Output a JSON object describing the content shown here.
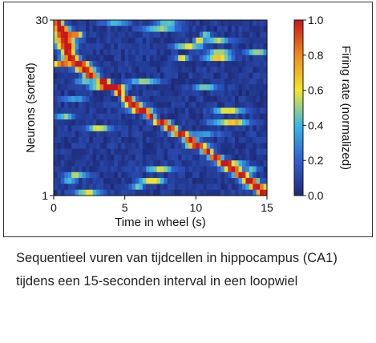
{
  "chart_data": {
    "type": "heatmap",
    "xlabel": "Time in wheel (s)",
    "ylabel": "Neurons (sorted)",
    "x_ticks": [
      "0",
      "5",
      "10",
      "15"
    ],
    "y_ticks": [
      "1",
      "30"
    ],
    "xlim": [
      0,
      15
    ],
    "ylim": [
      1,
      30
    ],
    "colorbar": {
      "label": "Firing rate (normalized)",
      "ticks": [
        "0.0",
        "0.2",
        "0.4",
        "0.6",
        "0.8",
        "1.0"
      ],
      "range": [
        0,
        1
      ],
      "colormap": [
        "#1e2a78",
        "#2f5fd0",
        "#38b8e6",
        "#f3e62a",
        "#f08a1c",
        "#c8161d"
      ]
    },
    "neurons": [
      {
        "neuron": 30,
        "peak_time_s": 0.3
      },
      {
        "neuron": 29,
        "peak_time_s": 0.5
      },
      {
        "neuron": 28,
        "peak_time_s": 0.7
      },
      {
        "neuron": 27,
        "peak_time_s": 0.8
      },
      {
        "neuron": 26,
        "peak_time_s": 0.9
      },
      {
        "neuron": 25,
        "peak_time_s": 1.0
      },
      {
        "neuron": 24,
        "peak_time_s": 1.2
      },
      {
        "neuron": 23,
        "peak_time_s": 1.8
      },
      {
        "neuron": 22,
        "peak_time_s": 2.2
      },
      {
        "neuron": 21,
        "peak_time_s": 2.6
      },
      {
        "neuron": 20,
        "peak_time_s": 3.5
      },
      {
        "neuron": 19,
        "peak_time_s": 4.2
      },
      {
        "neuron": 18,
        "peak_time_s": 4.6
      },
      {
        "neuron": 17,
        "peak_time_s": 5.2
      },
      {
        "neuron": 16,
        "peak_time_s": 5.6
      },
      {
        "neuron": 15,
        "peak_time_s": 6.2
      },
      {
        "neuron": 14,
        "peak_time_s": 6.8
      },
      {
        "neuron": 13,
        "peak_time_s": 7.6
      },
      {
        "neuron": 12,
        "peak_time_s": 8.2
      },
      {
        "neuron": 11,
        "peak_time_s": 8.9
      },
      {
        "neuron": 10,
        "peak_time_s": 9.6
      },
      {
        "neuron": 9,
        "peak_time_s": 10.1
      },
      {
        "neuron": 8,
        "peak_time_s": 10.8
      },
      {
        "neuron": 7,
        "peak_time_s": 11.4
      },
      {
        "neuron": 6,
        "peak_time_s": 12.0
      },
      {
        "neuron": 5,
        "peak_time_s": 12.6
      },
      {
        "neuron": 4,
        "peak_time_s": 13.2
      },
      {
        "neuron": 3,
        "peak_time_s": 13.8
      },
      {
        "neuron": 2,
        "peak_time_s": 14.3
      },
      {
        "neuron": 1,
        "peak_time_s": 14.7
      }
    ]
  },
  "caption": "Sequentieel vuren van tijdcellen in hippocampus (CA1) tijdens een 15-seconden interval in een loopwiel"
}
